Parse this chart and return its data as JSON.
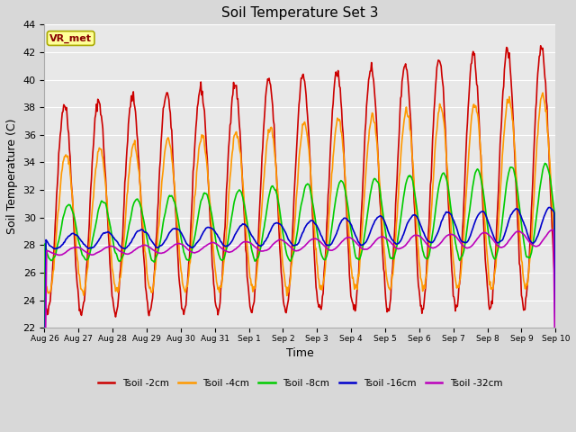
{
  "title": "Soil Temperature Set 3",
  "xlabel": "Time",
  "ylabel": "Soil Temperature (C)",
  "ylim": [
    22,
    44
  ],
  "yticks": [
    22,
    24,
    26,
    28,
    30,
    32,
    34,
    36,
    38,
    40,
    42,
    44
  ],
  "background_color": "#d8d8d8",
  "plot_bg_color": "#e8e8e8",
  "grid_color": "#ffffff",
  "series": [
    {
      "label": "Tsoil -2cm",
      "color": "#cc0000",
      "lw": 1.2
    },
    {
      "label": "Tsoil -4cm",
      "color": "#ff9900",
      "lw": 1.2
    },
    {
      "label": "Tsoil -8cm",
      "color": "#00cc00",
      "lw": 1.2
    },
    {
      "label": "Tsoil -16cm",
      "color": "#0000cc",
      "lw": 1.2
    },
    {
      "label": "Tsoil -32cm",
      "color": "#bb00bb",
      "lw": 1.2
    }
  ],
  "watermark": "VR_met",
  "watermark_bg": "#ffff99",
  "watermark_border": "#aaaa00",
  "watermark_text_color": "#880000",
  "tick_labels": [
    "Aug 26",
    "Aug 27",
    "Aug 28",
    "Aug 29",
    "Aug 30",
    "Aug 31",
    "Sep 1",
    "Sep 2",
    "Sep 3",
    "Sep 4",
    "Sep 5",
    "Sep 6",
    "Sep 7",
    "Sep 8",
    "Sep 9",
    "Sep 10"
  ],
  "n_days": 15
}
